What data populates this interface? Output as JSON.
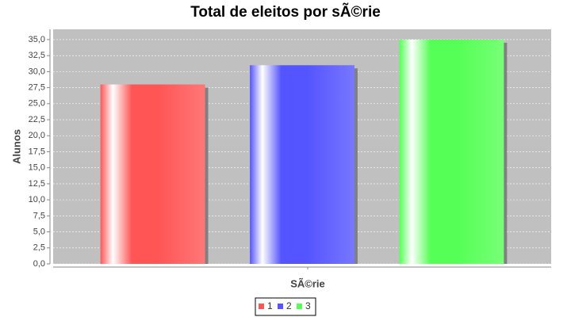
{
  "chart_data": {
    "type": "bar",
    "title": "Total de eleitos por sÃ©rie",
    "x_label": "SÃ©rie",
    "y_label": "Alunos",
    "categories": [
      null
    ],
    "series": [
      {
        "name": "1",
        "color": "#ff5555",
        "values": [
          28
        ]
      },
      {
        "name": "2",
        "color": "#5555ff",
        "values": [
          31
        ]
      },
      {
        "name": "3",
        "color": "#55ff55",
        "values": [
          35
        ]
      }
    ],
    "ylim": [
      0,
      36.6
    ],
    "yticks": [
      {
        "value": 0,
        "label": "0,0"
      },
      {
        "value": 2.5,
        "label": "2,5"
      },
      {
        "value": 5,
        "label": "5,0"
      },
      {
        "value": 7.5,
        "label": "7,5"
      },
      {
        "value": 10,
        "label": "10,0"
      },
      {
        "value": 12.5,
        "label": "12,5"
      },
      {
        "value": 15,
        "label": "15,0"
      },
      {
        "value": 17.5,
        "label": "17,5"
      },
      {
        "value": 20,
        "label": "20,0"
      },
      {
        "value": 22.5,
        "label": "22,5"
      },
      {
        "value": 25,
        "label": "25,0"
      },
      {
        "value": 27.5,
        "label": "27,5"
      },
      {
        "value": 30,
        "label": "30,0"
      },
      {
        "value": 32.5,
        "label": "32,5"
      },
      {
        "value": 35,
        "label": "35,0"
      }
    ],
    "grid": true,
    "legend": "bottom"
  }
}
